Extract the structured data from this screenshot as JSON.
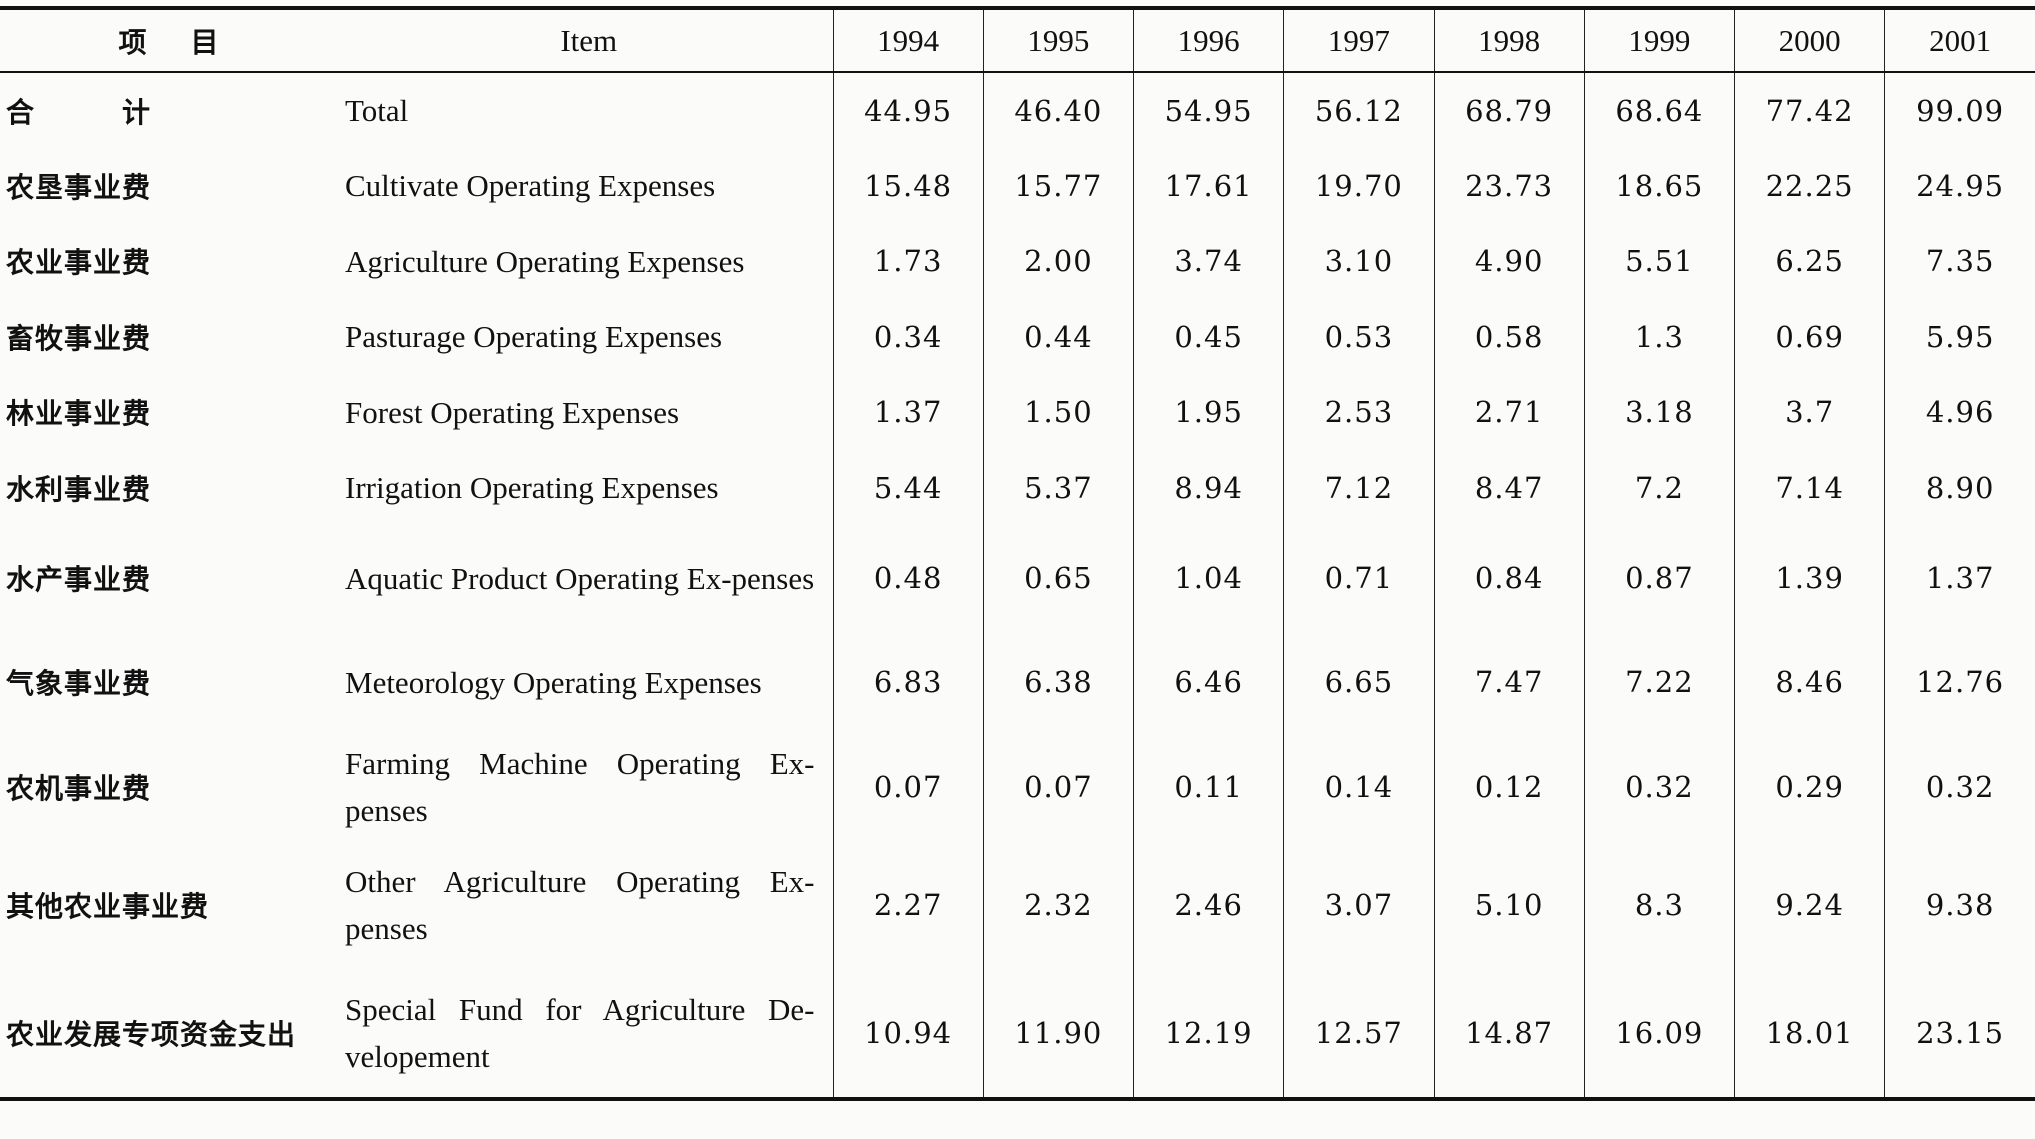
{
  "header": {
    "zh_label": "项　目",
    "en_label": "Item",
    "years": [
      "1994",
      "1995",
      "1996",
      "1997",
      "1998",
      "1999",
      "2000",
      "2001"
    ]
  },
  "rows": [
    {
      "zh": "合　计",
      "en": "Total",
      "values": [
        "44.95",
        "46.40",
        "54.95",
        "56.12",
        "68.79",
        "68.64",
        "77.42",
        "99.09"
      ]
    },
    {
      "zh": "农垦事业费",
      "en": "Cultivate Operating Expenses",
      "values": [
        "15.48",
        "15.77",
        "17.61",
        "19.70",
        "23.73",
        "18.65",
        "22.25",
        "24.95"
      ]
    },
    {
      "zh": "农业事业费",
      "en": "Agriculture Operating Expenses",
      "values": [
        "1.73",
        "2.00",
        "3.74",
        "3.10",
        "4.90",
        "5.51",
        "6.25",
        "7.35"
      ]
    },
    {
      "zh": "畜牧事业费",
      "en": "Pasturage Operating Expenses",
      "values": [
        "0.34",
        "0.44",
        "0.45",
        "0.53",
        "0.58",
        "1.3",
        "0.69",
        "5.95"
      ]
    },
    {
      "zh": "林业事业费",
      "en": "Forest Operating Expenses",
      "values": [
        "1.37",
        "1.50",
        "1.95",
        "2.53",
        "2.71",
        "3.18",
        "3.7",
        "4.96"
      ]
    },
    {
      "zh": "水利事业费",
      "en": "Irrigation Operating Expenses",
      "values": [
        "5.44",
        "5.37",
        "8.94",
        "7.12",
        "8.47",
        "7.2",
        "7.14",
        "8.90"
      ]
    },
    {
      "zh": "水产事业费",
      "en": "Aquatic Product Operating Ex-penses",
      "values": [
        "0.48",
        "0.65",
        "1.04",
        "0.71",
        "0.84",
        "0.87",
        "1.39",
        "1.37"
      ]
    },
    {
      "zh": "气象事业费",
      "en": "Meteorology Operating Expenses",
      "values": [
        "6.83",
        "6.38",
        "6.46",
        "6.65",
        "7.47",
        "7.22",
        "8.46",
        "12.76"
      ]
    },
    {
      "zh": "农机事业费",
      "en": "Farming Machine Operating Ex-penses",
      "values": [
        "0.07",
        "0.07",
        "0.11",
        "0.14",
        "0.12",
        "0.32",
        "0.29",
        "0.32"
      ]
    },
    {
      "zh": "其他农业事业费",
      "en": "Other Agriculture Operating Ex-penses",
      "values": [
        "2.27",
        "2.32",
        "2.46",
        "3.07",
        "5.10",
        "8.3",
        "9.24",
        "9.38"
      ]
    },
    {
      "zh": "农业发展专项资金支出",
      "en": "Special Fund for Agriculture De-velopement",
      "values": [
        "10.94",
        "11.90",
        "12.19",
        "12.57",
        "14.87",
        "16.09",
        "18.01",
        "23.15"
      ]
    }
  ]
}
